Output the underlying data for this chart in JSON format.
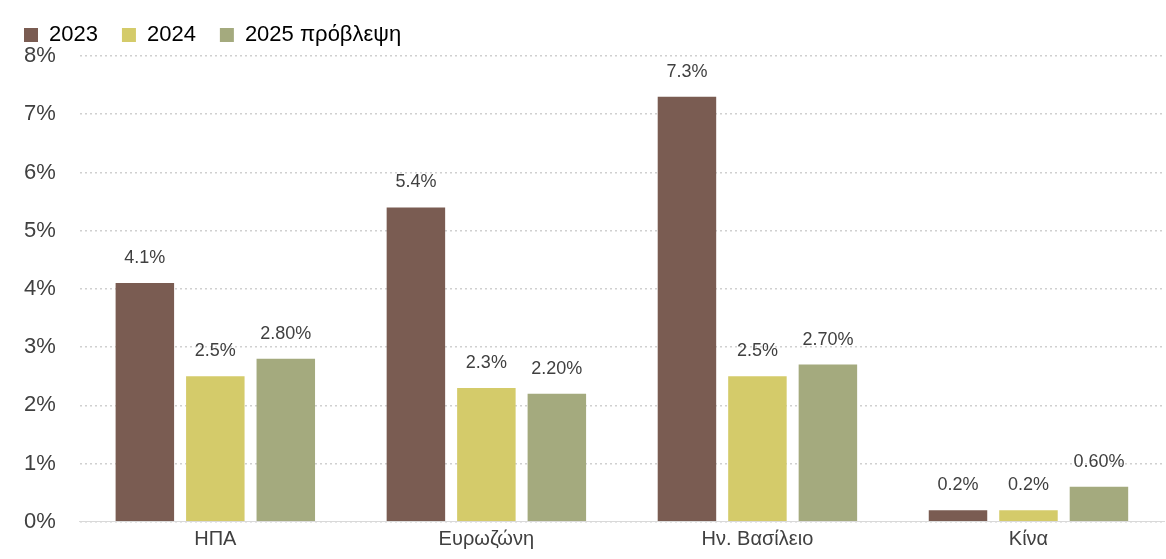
{
  "chart_data": {
    "type": "bar",
    "categories": [
      "ΗΠΑ",
      "Ευρωζώνη",
      "Ην. Βασίλειο",
      "Κίνα"
    ],
    "series": [
      {
        "name": "2023",
        "color": "#7a5c52",
        "values": [
          4.1,
          5.4,
          7.3,
          0.2
        ],
        "value_labels": [
          "4.1%",
          "5.4%",
          "7.3%",
          "0.2%"
        ]
      },
      {
        "name": "2024",
        "color": "#d4cb6a",
        "values": [
          2.5,
          2.3,
          2.5,
          0.2
        ],
        "value_labels": [
          "2.5%",
          "2.3%",
          "2.5%",
          "0.2%"
        ]
      },
      {
        "name": "2025 πρόβλεψη",
        "color": "#a4aa7e",
        "values": [
          2.8,
          2.2,
          2.7,
          0.6
        ],
        "value_labels": [
          "2.80%",
          "2.20%",
          "2.70%",
          "0.60%"
        ]
      }
    ],
    "ylim": [
      0,
      8
    ],
    "yticks": [
      {
        "value": 0,
        "label": "0%"
      },
      {
        "value": 1,
        "label": "1%"
      },
      {
        "value": 2,
        "label": "2%"
      },
      {
        "value": 3,
        "label": "3%"
      },
      {
        "value": 4,
        "label": "4%"
      },
      {
        "value": 5,
        "label": "5%"
      },
      {
        "value": 6,
        "label": "6%"
      },
      {
        "value": 7,
        "label": "7%"
      },
      {
        "value": 8,
        "label": "8%"
      }
    ],
    "grid": "y",
    "legend": "top left"
  }
}
